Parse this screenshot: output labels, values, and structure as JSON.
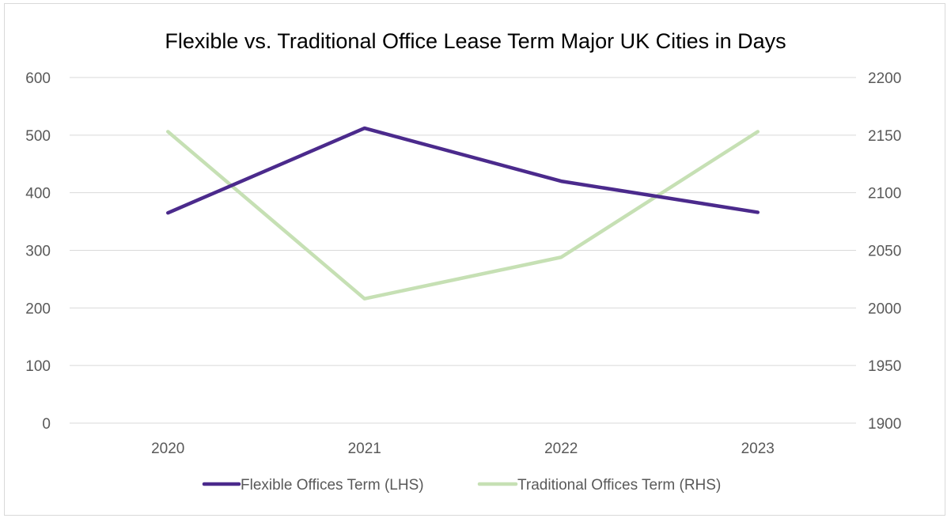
{
  "chart_data": {
    "type": "line",
    "title": "Flexible vs. Traditional Office Lease Term Major UK Cities in Days",
    "categories": [
      "2020",
      "2021",
      "2022",
      "2023"
    ],
    "y_left": {
      "min": 0,
      "max": 600,
      "step": 100,
      "ticks": [
        "0",
        "100",
        "200",
        "300",
        "400",
        "500",
        "600"
      ]
    },
    "y_right": {
      "min": 1900,
      "max": 2200,
      "step": 50,
      "ticks": [
        "1900",
        "1950",
        "2000",
        "2050",
        "2100",
        "2150",
        "2200"
      ]
    },
    "grid": true,
    "legend_position": "bottom",
    "series": [
      {
        "name": "Flexible Offices Term (LHS)",
        "axis": "left",
        "color": "#4b2a8c",
        "values": [
          365,
          512,
          420,
          366
        ]
      },
      {
        "name": "Traditional Offices Term (RHS)",
        "axis": "right",
        "color": "#c6e0b4",
        "values": [
          2153,
          2008,
          2044,
          2153
        ]
      }
    ]
  }
}
